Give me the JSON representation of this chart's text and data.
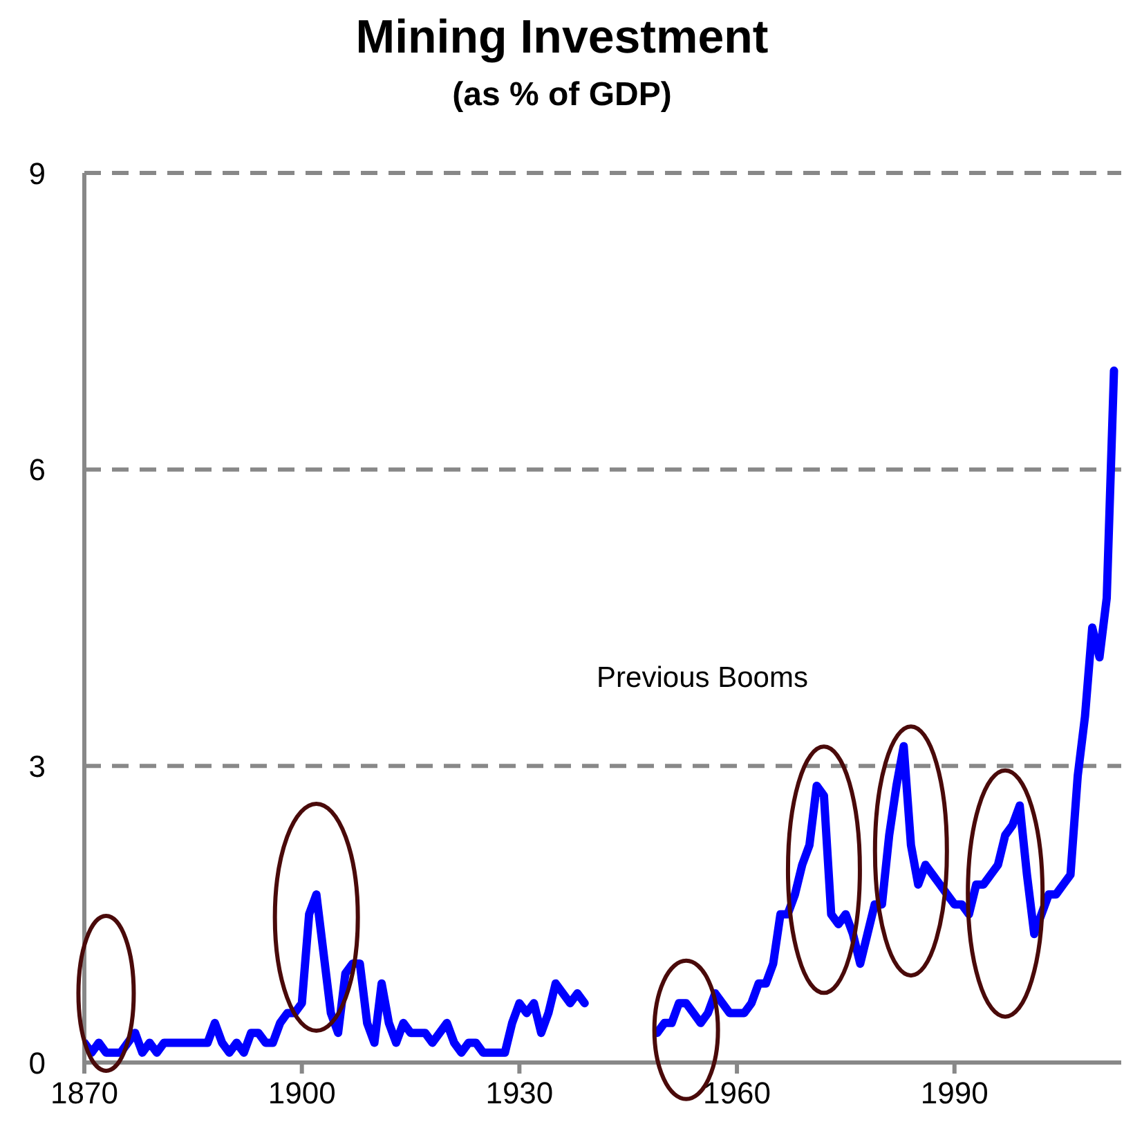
{
  "chart_data": {
    "type": "line",
    "title": "Mining Investment",
    "subtitle": "(as % of GDP)",
    "annotations": [
      "Previous Booms"
    ],
    "x": [
      1870,
      1871,
      1872,
      1873,
      1874,
      1875,
      1876,
      1877,
      1878,
      1879,
      1880,
      1881,
      1882,
      1883,
      1884,
      1885,
      1886,
      1887,
      1888,
      1889,
      1890,
      1891,
      1892,
      1893,
      1894,
      1895,
      1896,
      1897,
      1898,
      1899,
      1900,
      1901,
      1902,
      1903,
      1904,
      1905,
      1906,
      1907,
      1908,
      1909,
      1910,
      1911,
      1912,
      1913,
      1914,
      1915,
      1916,
      1917,
      1918,
      1919,
      1920,
      1921,
      1922,
      1923,
      1924,
      1925,
      1926,
      1927,
      1928,
      1929,
      1930,
      1931,
      1932,
      1933,
      1934,
      1935,
      1936,
      1937,
      1938,
      1939,
      1940,
      1941,
      1942,
      1943,
      1944,
      1945,
      1946,
      1947,
      1948,
      1949,
      1950,
      1951,
      1952,
      1953,
      1954,
      1955,
      1956,
      1957,
      1958,
      1959,
      1960,
      1961,
      1962,
      1963,
      1964,
      1965,
      1966,
      1967,
      1968,
      1969,
      1970,
      1971,
      1972,
      1973,
      1974,
      1975,
      1976,
      1977,
      1978,
      1979,
      1980,
      1981,
      1982,
      1983,
      1984,
      1985,
      1986,
      1987,
      1988,
      1989,
      1990,
      1991,
      1992,
      1993,
      1994,
      1995,
      1996,
      1997,
      1998,
      1999,
      2000,
      2001,
      2002,
      2003,
      2004,
      2005,
      2006,
      2007,
      2008,
      2009,
      2010,
      2011,
      2012
    ],
    "series": [
      {
        "color": "#0000ff",
        "values": [
          0.2,
          0.1,
          0.2,
          0.1,
          0.1,
          0.1,
          0.2,
          0.3,
          0.1,
          0.2,
          0.1,
          0.2,
          0.2,
          0.2,
          0.2,
          0.2,
          0.2,
          0.2,
          0.4,
          0.2,
          0.1,
          0.2,
          0.1,
          0.3,
          0.3,
          0.2,
          0.2,
          0.4,
          0.5,
          0.5,
          0.6,
          1.5,
          1.7,
          1.1,
          0.5,
          0.3,
          0.9,
          1.0,
          1.0,
          0.4,
          0.2,
          0.8,
          0.4,
          0.2,
          0.4,
          0.3,
          0.3,
          0.3,
          0.2,
          0.3,
          0.4,
          0.2,
          0.1,
          0.2,
          0.2,
          0.1,
          0.1,
          0.1,
          0.1,
          0.4,
          0.6,
          0.5,
          0.6,
          0.3,
          0.5,
          0.8,
          0.7,
          0.6,
          0.7,
          0.6,
          null,
          null,
          null,
          null,
          null,
          null,
          null,
          null,
          null,
          0.3,
          0.4,
          0.4,
          0.6,
          0.6,
          0.5,
          0.4,
          0.5,
          0.7,
          0.6,
          0.5,
          0.5,
          0.5,
          0.6,
          0.8,
          0.8,
          1.0,
          1.5,
          1.5,
          1.7,
          2.0,
          2.2,
          2.8,
          2.7,
          1.5,
          1.4,
          1.5,
          1.3,
          1.0,
          1.3,
          1.6,
          1.6,
          2.3,
          2.8,
          3.2,
          2.2,
          1.8,
          2.0,
          1.9,
          1.8,
          1.7,
          1.6,
          1.6,
          1.5,
          1.8,
          1.8,
          1.9,
          2.0,
          2.3,
          2.4,
          2.6,
          1.9,
          1.3,
          1.5,
          1.7,
          1.7,
          1.8,
          1.9,
          2.9,
          3.5,
          4.4,
          4.1,
          4.7,
          7.0
        ]
      }
    ],
    "xlim": [
      1870,
      2013
    ],
    "xticks": [
      1870,
      1900,
      1930,
      1960,
      1990
    ],
    "ylim": [
      0,
      9
    ],
    "yticks": [
      0,
      3,
      6,
      9
    ],
    "grid": "y",
    "line_style": "solid",
    "marker": "none"
  }
}
